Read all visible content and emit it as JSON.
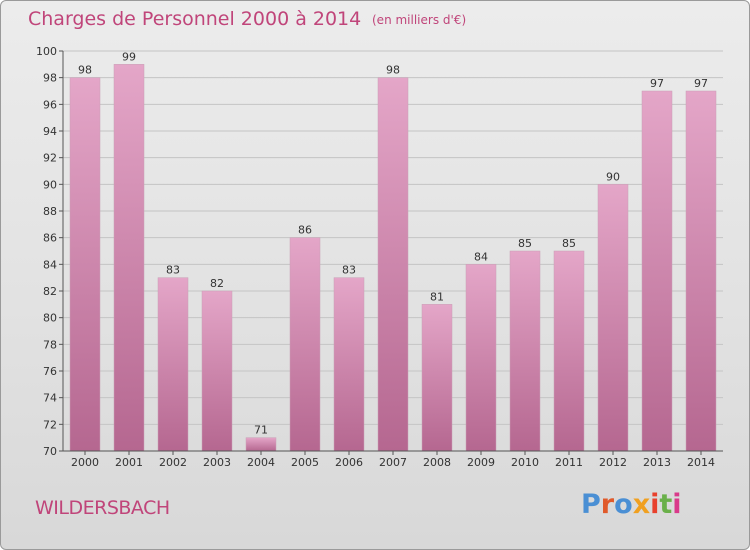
{
  "header": {
    "title": "Charges de Personnel 2000 à 2014",
    "subtitle": "(en milliers d'€)"
  },
  "footer": {
    "commune": "WILDERSBACH",
    "logo_text": "Proxiti"
  },
  "colors": {
    "bar": "#d98ab3",
    "bar_dark": "#c06a98",
    "title": "#c0457a",
    "logo": [
      "#4a8fd4",
      "#e05a2a",
      "#4a8fd4",
      "#f0a020",
      "#e8412d",
      "#6ab04a",
      "#d93a8a"
    ]
  },
  "chart_data": {
    "type": "bar",
    "title": "Charges de Personnel 2000 à 2014",
    "subtitle": "(en milliers d'€)",
    "categories": [
      "2000",
      "2001",
      "2002",
      "2003",
      "2004",
      "2005",
      "2006",
      "2007",
      "2008",
      "2009",
      "2010",
      "2011",
      "2012",
      "2013",
      "2014"
    ],
    "values": [
      98,
      99,
      83,
      82,
      71,
      86,
      83,
      98,
      81,
      84,
      85,
      85,
      90,
      97,
      97
    ],
    "ylim": [
      70,
      100
    ],
    "yticks": [
      70,
      72,
      74,
      76,
      78,
      80,
      82,
      84,
      86,
      88,
      90,
      92,
      94,
      96,
      98,
      100
    ],
    "grid": true,
    "legend": "none"
  }
}
